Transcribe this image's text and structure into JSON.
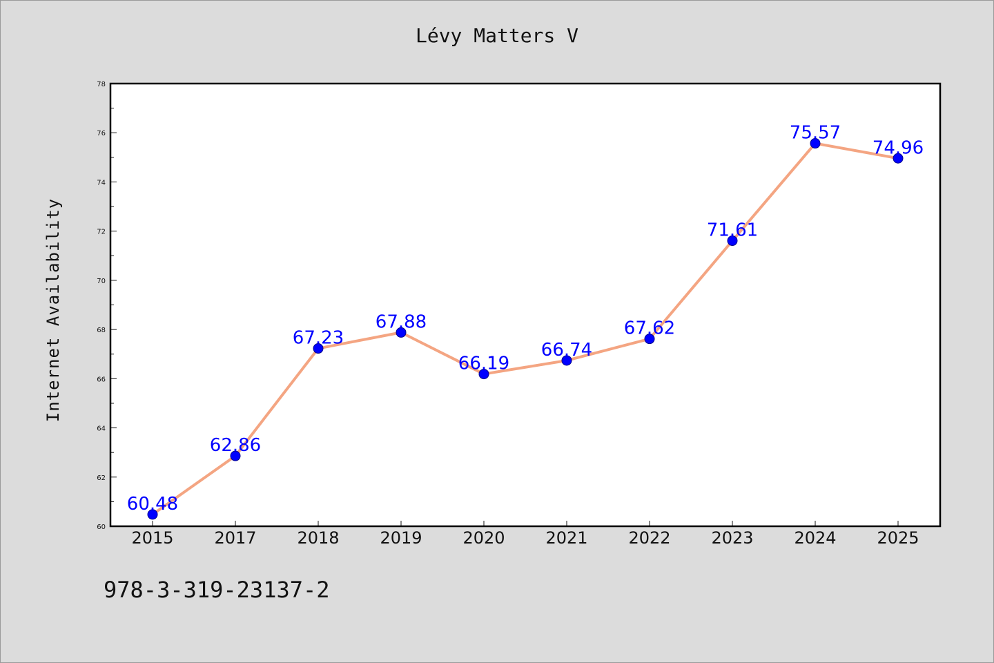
{
  "chart_data": {
    "type": "line",
    "title": "Lévy Matters V",
    "xlabel": "",
    "ylabel": "Internet Availability",
    "categories": [
      "2015",
      "2017",
      "2018",
      "2019",
      "2020",
      "2021",
      "2022",
      "2023",
      "2024",
      "2025"
    ],
    "series": [
      {
        "values": [
          60.48,
          62.86,
          67.23,
          67.88,
          66.19,
          66.74,
          67.62,
          71.61,
          75.57,
          74.96
        ],
        "line_color": "#f4a582",
        "marker_color": "#0000ff"
      }
    ],
    "data_labels": [
      "60.48",
      "62.86",
      "67.23",
      "67.88",
      "66.19",
      "66.74",
      "67.62",
      "71.61",
      "75.57",
      "74.96"
    ],
    "ylim": [
      60,
      78
    ],
    "yticks": [
      60,
      62,
      64,
      66,
      68,
      70,
      72,
      74,
      76,
      78
    ],
    "grid": false,
    "legend": "none",
    "footnote": "978-3-319-23137-2"
  }
}
